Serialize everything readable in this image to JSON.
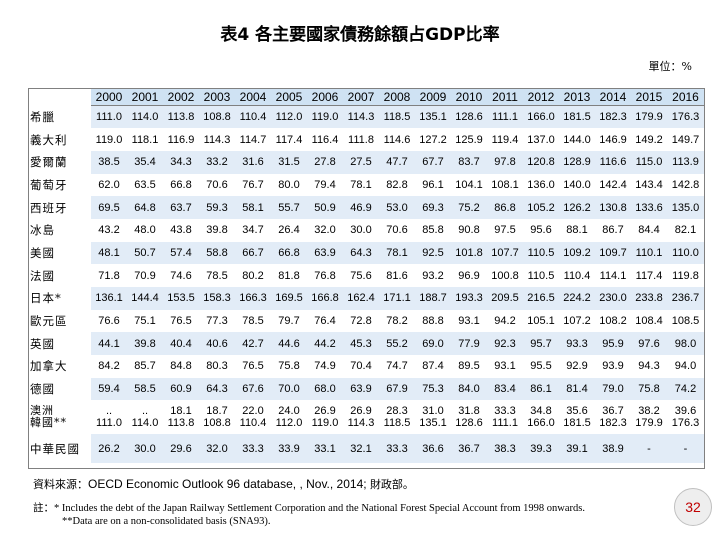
{
  "title": "表4  各主要國家債務餘額占GDP比率",
  "unit": "單位：%",
  "table": {
    "years": [
      "2000",
      "2001",
      "2002",
      "2003",
      "2004",
      "2005",
      "2006",
      "2007",
      "2008",
      "2009",
      "2010",
      "2011",
      "2012",
      "2013",
      "2014",
      "2015",
      "2016"
    ],
    "rows": [
      {
        "country": "希臘",
        "values": [
          "111.0",
          "114.0",
          "113.8",
          "108.8",
          "110.4",
          "112.0",
          "119.0",
          "114.3",
          "118.5",
          "135.1",
          "128.6",
          "111.1",
          "166.0",
          "181.5",
          "182.3",
          "179.9",
          "176.3"
        ]
      },
      {
        "country": "義大利",
        "values": [
          "119.0",
          "118.1",
          "116.9",
          "114.3",
          "114.7",
          "117.4",
          "116.4",
          "111.8",
          "114.6",
          "127.2",
          "125.9",
          "119.4",
          "137.0",
          "144.0",
          "146.9",
          "149.2",
          "149.7"
        ]
      },
      {
        "country": "愛爾蘭",
        "values": [
          "38.5",
          "35.4",
          "34.3",
          "33.2",
          "31.6",
          "31.5",
          "27.8",
          "27.5",
          "47.7",
          "67.7",
          "83.7",
          "97.8",
          "120.8",
          "128.9",
          "116.6",
          "115.0",
          "113.9"
        ]
      },
      {
        "country": "葡萄牙",
        "values": [
          "62.0",
          "63.5",
          "66.8",
          "70.6",
          "76.7",
          "80.0",
          "79.4",
          "78.1",
          "82.8",
          "96.1",
          "104.1",
          "108.1",
          "136.0",
          "140.0",
          "142.4",
          "143.4",
          "142.8"
        ]
      },
      {
        "country": "西班牙",
        "values": [
          "69.5",
          "64.8",
          "63.7",
          "59.3",
          "58.1",
          "55.7",
          "50.9",
          "46.9",
          "53.0",
          "69.3",
          "75.2",
          "86.8",
          "105.2",
          "126.2",
          "130.8",
          "133.6",
          "135.0"
        ]
      },
      {
        "country": "冰島",
        "values": [
          "43.2",
          "48.0",
          "43.8",
          "39.8",
          "34.7",
          "26.4",
          "32.0",
          "30.0",
          "70.6",
          "85.8",
          "90.8",
          "97.5",
          "95.6",
          "88.1",
          "86.7",
          "84.4",
          "82.1"
        ]
      },
      {
        "country": "美國",
        "values": [
          "48.1",
          "50.7",
          "57.4",
          "58.8",
          "66.7",
          "66.8",
          "63.9",
          "64.3",
          "78.1",
          "92.5",
          "101.8",
          "107.7",
          "110.5",
          "109.2",
          "109.7",
          "110.1",
          "110.0"
        ]
      },
      {
        "country": "法國",
        "values": [
          "71.8",
          "70.9",
          "74.6",
          "78.5",
          "80.2",
          "81.8",
          "76.8",
          "75.6",
          "81.6",
          "93.2",
          "96.9",
          "100.8",
          "110.5",
          "110.4",
          "114.1",
          "117.4",
          "119.8"
        ]
      },
      {
        "country": "日本*",
        "values": [
          "136.1",
          "144.4",
          "153.5",
          "158.3",
          "166.3",
          "169.5",
          "166.8",
          "162.4",
          "171.1",
          "188.7",
          "193.3",
          "209.5",
          "216.5",
          "224.2",
          "230.0",
          "233.8",
          "236.7"
        ]
      },
      {
        "country": "歐元區",
        "values": [
          "76.6",
          "75.1",
          "76.5",
          "77.3",
          "78.5",
          "79.7",
          "76.4",
          "72.8",
          "78.2",
          "88.8",
          "93.1",
          "94.2",
          "105.1",
          "107.2",
          "108.2",
          "108.4",
          "108.5"
        ]
      },
      {
        "country": "英國",
        "values": [
          "44.1",
          "39.8",
          "40.4",
          "40.6",
          "42.7",
          "44.6",
          "44.2",
          "45.3",
          "55.2",
          "69.0",
          "77.9",
          "92.3",
          "95.7",
          "93.3",
          "95.9",
          "97.6",
          "98.0"
        ]
      },
      {
        "country": "加拿大",
        "values": [
          "84.2",
          "85.7",
          "84.8",
          "80.3",
          "76.5",
          "75.8",
          "74.9",
          "70.4",
          "74.7",
          "87.4",
          "89.5",
          "93.1",
          "95.5",
          "92.9",
          "93.9",
          "94.3",
          "94.0"
        ]
      },
      {
        "country": "德國",
        "values": [
          "59.4",
          "58.5",
          "60.9",
          "64.3",
          "67.6",
          "70.0",
          "68.0",
          "63.9",
          "67.9",
          "75.3",
          "84.0",
          "83.4",
          "86.1",
          "81.4",
          "79.0",
          "75.8",
          "74.2"
        ]
      }
    ],
    "stacked": {
      "country_top": "澳洲",
      "country_bottom": "韓國**",
      "top_values": [
        "..",
        "..",
        "18.1",
        "18.7",
        "22.0",
        "24.0",
        "26.9",
        "26.9",
        "28.3",
        "31.0",
        "31.8",
        "33.3",
        "34.8",
        "35.6",
        "36.7",
        "38.2",
        "39.6"
      ],
      "bottom_values": [
        "111.0",
        "114.0",
        "113.8",
        "108.8",
        "110.4",
        "112.0",
        "119.0",
        "114.3",
        "118.5",
        "135.1",
        "128.6",
        "111.1",
        "166.0",
        "181.5",
        "182.3",
        "179.9",
        "176.3"
      ]
    },
    "last_row": {
      "country": "中華民國",
      "values": [
        "26.2",
        "30.0",
        "29.6",
        "32.0",
        "33.3",
        "33.9",
        "33.1",
        "32.1",
        "33.3",
        "36.6",
        "36.7",
        "38.3",
        "39.3",
        "39.1",
        "38.9",
        "-",
        "-"
      ]
    }
  },
  "source": {
    "prefix": "資料來源：",
    "english": "OECD Economic Outlook 96 database, , Nov., 2014; ",
    "suffix": "財政部。"
  },
  "notes": {
    "line1": "註：* Includes the debt of the Japan Railway Settlement Corporation and the National Forest Special Account from 1998 onwards.",
    "line2": "**Data are on a non-consolidated basis (SNA93)."
  },
  "page_number": "32",
  "colors": {
    "header_band": "#cfe2f3",
    "row_band": "#e2ecf7",
    "page_number": "#c00000"
  }
}
